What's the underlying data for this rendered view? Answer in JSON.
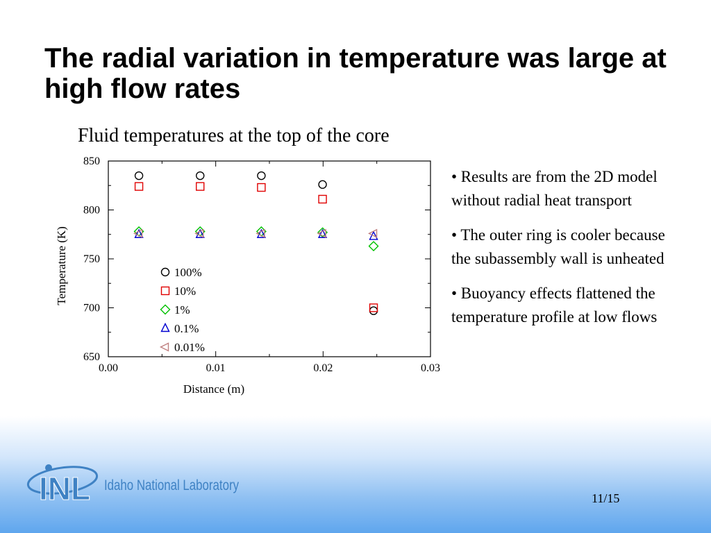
{
  "slide": {
    "title": "The radial variation in temperature was large at high flow rates",
    "page": "11/15"
  },
  "bullets": [
    "• Results are from the 2D model without radial heat transport",
    "• The outer ring is cooler because the subassembly wall is unheated",
    "• Buoyancy effects flattened the temperature profile at low flows"
  ],
  "logo": {
    "name": "Idaho National Laboratory",
    "letters": "INL"
  },
  "chart_data": {
    "type": "scatter",
    "title": "Fluid temperatures at the top of the core",
    "xlabel": "Distance (m)",
    "ylabel": "Temperature (K)",
    "xlim": [
      0.0,
      0.03
    ],
    "ylim": [
      650,
      850
    ],
    "xticks": [
      "0.00",
      "0.01",
      "0.02",
      "0.03"
    ],
    "yticks": [
      "650",
      "700",
      "750",
      "800",
      "850"
    ],
    "grid": false,
    "legend_position": "lower-left inside",
    "series": [
      {
        "name": "100%",
        "marker": "circle",
        "color": "#000000",
        "x": [
          0.00285,
          0.00855,
          0.01425,
          0.01995,
          0.0247
        ],
        "y": [
          835,
          835,
          835,
          826,
          697
        ]
      },
      {
        "name": "10%",
        "marker": "square",
        "color": "#e00000",
        "x": [
          0.00285,
          0.00855,
          0.01425,
          0.01995,
          0.0247
        ],
        "y": [
          824,
          824,
          823,
          811,
          700
        ]
      },
      {
        "name": "1%",
        "marker": "diamond",
        "color": "#00c000",
        "x": [
          0.00285,
          0.00855,
          0.01425,
          0.01995,
          0.0247
        ],
        "y": [
          778,
          778,
          778,
          777,
          763
        ]
      },
      {
        "name": "0.1%",
        "marker": "triangle-up",
        "color": "#0000d0",
        "x": [
          0.00285,
          0.00855,
          0.01425,
          0.01995,
          0.0247
        ],
        "y": [
          775,
          775,
          775,
          775,
          773
        ]
      },
      {
        "name": "0.01%",
        "marker": "triangle-left",
        "color": "#c08080",
        "x": [
          0.00285,
          0.00855,
          0.01425,
          0.01995,
          0.0247
        ],
        "y": [
          776,
          776,
          776,
          776,
          776
        ]
      }
    ]
  }
}
